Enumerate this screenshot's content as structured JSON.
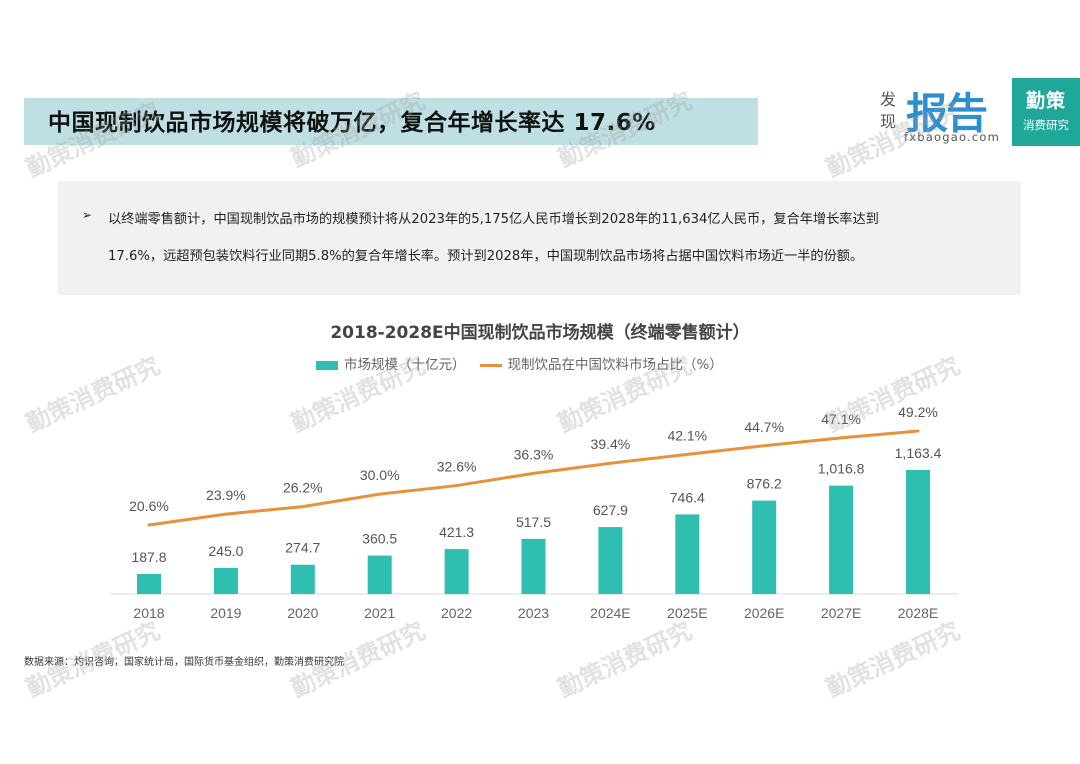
{
  "header": {
    "title": "中国现制饮品市场规模将破万亿，复合年增长率达 17.6%",
    "logo_fx_fa": "发",
    "logo_fx_xian": "现",
    "logo_fx_main": "报告",
    "logo_fx_url": "fxbaogao.com",
    "logo_qc_main": "勤策",
    "logo_qc_sub": "消费研究"
  },
  "summary": {
    "bullet": "➢",
    "line1": "以终端零售额计，中国现制饮品市场的规模预计将从2023年的5,175亿人民币增长到2028年的11,634亿人民币，复合年增长率达到",
    "line2": "17.6%，远超预包装饮料行业同期5.8%的复合年增长率。预计到2028年，中国现制饮品市场将占据中国饮料市场近一半的份额。"
  },
  "watermark": "勤策消费研究",
  "source": "数据来源：灼识咨询，国家统计局，国际货币基金组织，勤策消费研究院",
  "chart_data": {
    "type": "bar",
    "title": "2018-2028E中国现制饮品市场规模（终端零售额计）",
    "categories": [
      "2018",
      "2019",
      "2020",
      "2021",
      "2022",
      "2023",
      "2024E",
      "2025E",
      "2026E",
      "2027E",
      "2028E"
    ],
    "series": [
      {
        "name": "市场规模（十亿元）",
        "type": "bar",
        "color": "#2ebfb0",
        "values": [
          187.8,
          245.0,
          274.7,
          360.5,
          421.3,
          517.5,
          627.9,
          746.4,
          876.2,
          1016.8,
          1163.4
        ],
        "labels": [
          "187.8",
          "245.0",
          "274.7",
          "360.5",
          "421.3",
          "517.5",
          "627.9",
          "746.4",
          "876.2",
          "1,016.8",
          "1,163.4"
        ]
      },
      {
        "name": "现制饮品在中国饮料市场占比（%）",
        "type": "line",
        "color": "#e8913a",
        "values": [
          20.6,
          23.9,
          26.2,
          30.0,
          32.6,
          36.3,
          39.4,
          42.1,
          44.7,
          47.1,
          49.2
        ],
        "labels": [
          "20.6%",
          "23.9%",
          "26.2%",
          "30.0%",
          "32.6%",
          "36.3%",
          "39.4%",
          "42.1%",
          "44.7%",
          "47.1%",
          "49.2%"
        ]
      }
    ],
    "ylim_bar": [
      0,
      1300
    ],
    "ylim_line": [
      0,
      55
    ]
  }
}
